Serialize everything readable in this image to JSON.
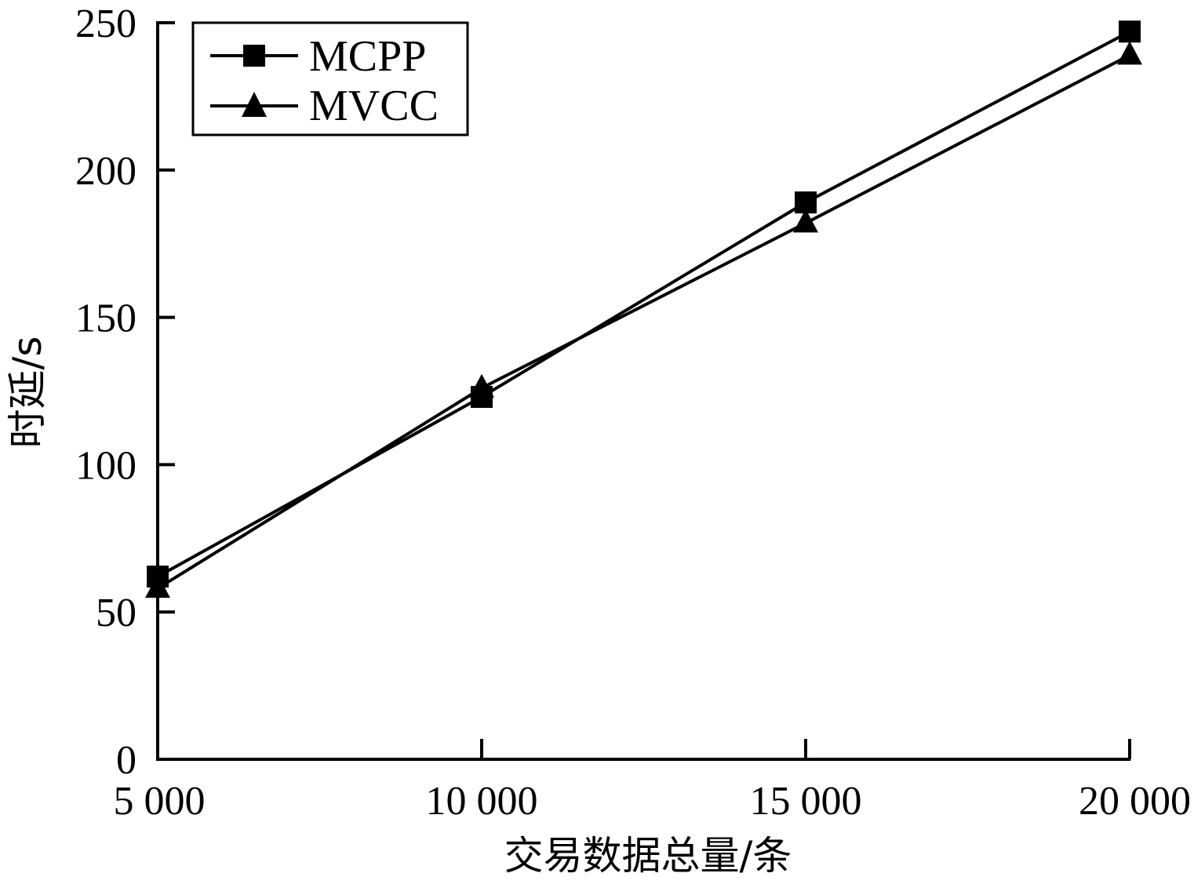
{
  "chart_data": {
    "type": "line",
    "x": [
      5000,
      10000,
      15000,
      20000
    ],
    "xtick_labels": [
      "5 000",
      "10 000",
      "15 000",
      "20 000"
    ],
    "yticks": [
      0,
      50,
      100,
      150,
      200,
      250
    ],
    "ytick_labels": [
      "0",
      "50",
      "100",
      "150",
      "200",
      "250"
    ],
    "xlim": [
      5000,
      20000
    ],
    "ylim": [
      0,
      250
    ],
    "xlabel": "交易数据总量/条",
    "ylabel": "时延/s",
    "grid": false,
    "legend_position": "top-left",
    "series": [
      {
        "name": "MCPP",
        "marker": "square",
        "color": "#000000",
        "values": [
          62,
          123,
          189,
          247
        ]
      },
      {
        "name": "MVCC",
        "marker": "triangle",
        "color": "#000000",
        "values": [
          58,
          126,
          182,
          239
        ]
      }
    ]
  }
}
